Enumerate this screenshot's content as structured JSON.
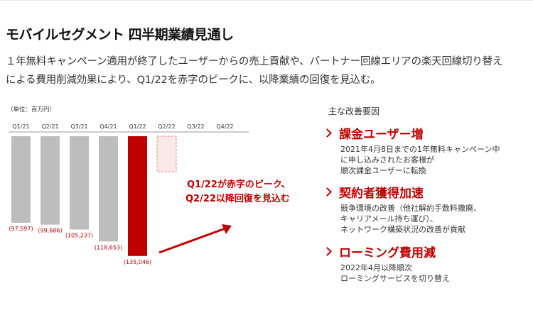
{
  "page": {
    "title": "モバイルセグメント 四半期業績見通し",
    "description": [
      "１年無料キャンペーン適用が終了したユーザーからの売上貢献や、パートナー回線エリアの楽天回線切り替え",
      "による費用削減効果により、Q1/22を赤字のピークに、以降業績の回復を見込む。"
    ]
  },
  "chart_data": {
    "type": "bar",
    "unit_label": "（単位：百万円）",
    "categories": [
      "Q1/21",
      "Q2/21",
      "Q3/21",
      "Q4/21",
      "Q1/22",
      "Q2/22",
      "Q3/22",
      "Q4/22"
    ],
    "values": [
      -97597,
      -99686,
      -105237,
      -118653,
      -135046,
      -40000,
      null,
      null
    ],
    "value_labels": [
      "(97,597)",
      "(99,686)",
      "(105,237)",
      "(118,653)",
      "(135,046)",
      "",
      "",
      ""
    ],
    "styles": [
      "actual",
      "actual",
      "actual",
      "actual",
      "highlight",
      "forecast",
      "none",
      "none"
    ],
    "ylim": [
      -140000,
      0
    ],
    "colors": {
      "actual": "#bdbdbd",
      "highlight": "#c00000",
      "forecast": "#fde8e8",
      "forecast_border": "#e58a8a",
      "label": "#c00000"
    },
    "annotation": {
      "lines": [
        "Q1/22が赤字のピーク、",
        "Q2/22以降回復を見込む"
      ]
    }
  },
  "reasons": {
    "heading": "主な改善要因",
    "items": [
      {
        "title": "課金ユーザー増",
        "lines": [
          "2021年4月8日までの1年無料キャンペーン中",
          "に申し込みされたお客様が",
          "順次課金ユーザーに転換"
        ]
      },
      {
        "title": "契約者獲得加速",
        "lines": [
          "競争環境の改善（他社解約手数料撤廃、",
          "キャリアメール持ち運び）、",
          "ネットワーク構築状況の改善が貢献"
        ]
      },
      {
        "title": "ローミング費用減",
        "lines": [
          "2022年4月以降順次",
          "ローミングサービスを切り替え"
        ]
      }
    ]
  }
}
